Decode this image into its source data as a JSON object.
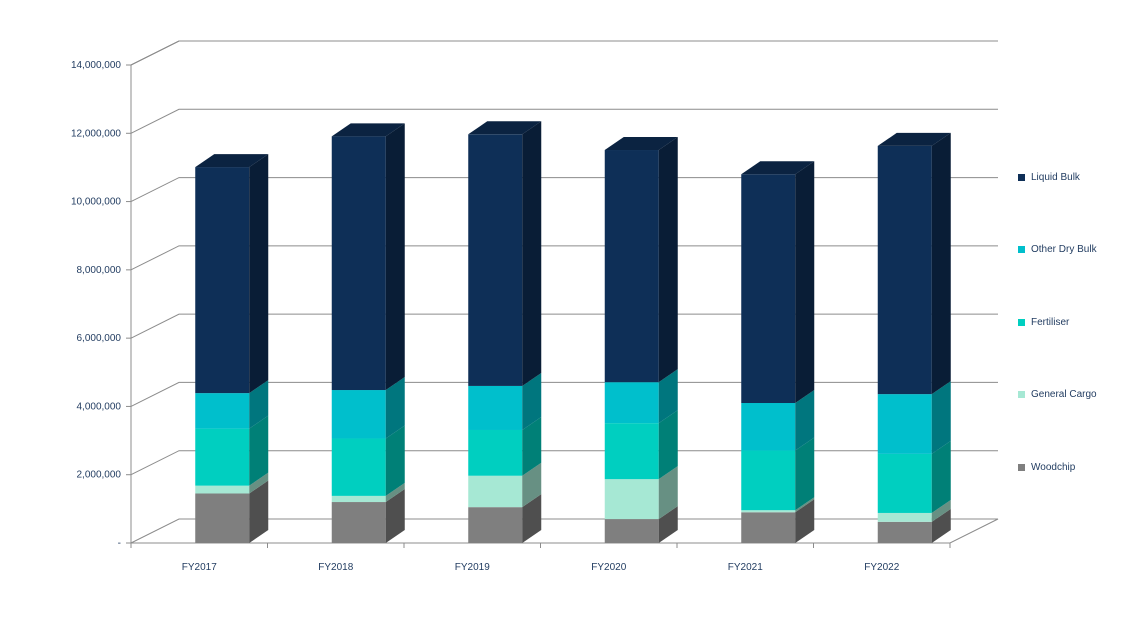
{
  "chart_data": {
    "type": "bar",
    "stacked": true,
    "three_d": true,
    "categories": [
      "FY2017",
      "FY2018",
      "FY2019",
      "FY2020",
      "FY2021",
      "FY2022"
    ],
    "series": [
      {
        "name": "Woodchip",
        "color": "#7f7f7f",
        "values": [
          1450000,
          1200000,
          1050000,
          700000,
          900000,
          620000
        ]
      },
      {
        "name": "General Cargo",
        "color": "#a6e8d4",
        "values": [
          230000,
          180000,
          920000,
          1170000,
          60000,
          260000
        ]
      },
      {
        "name": "Fertiliser",
        "color": "#00cfc0",
        "values": [
          1670000,
          1680000,
          1340000,
          1640000,
          1750000,
          1730000
        ]
      },
      {
        "name": "Other Dry Bulk",
        "color": "#00bfcc",
        "values": [
          1040000,
          1420000,
          1290000,
          1200000,
          1390000,
          1750000
        ]
      },
      {
        "name": "Liquid Bulk",
        "color": "#0e2f57",
        "values": [
          6620000,
          7430000,
          7370000,
          6800000,
          6700000,
          7270000
        ]
      }
    ],
    "yaxis": {
      "min": 0,
      "max": 14000000,
      "step": 2000000,
      "tick_labels": [
        "-",
        "2,000,000",
        "4,000,000",
        "6,000,000",
        "8,000,000",
        "10,000,000",
        "12,000,000",
        "14,000,000"
      ]
    },
    "grid": true,
    "legend_position": "right"
  }
}
